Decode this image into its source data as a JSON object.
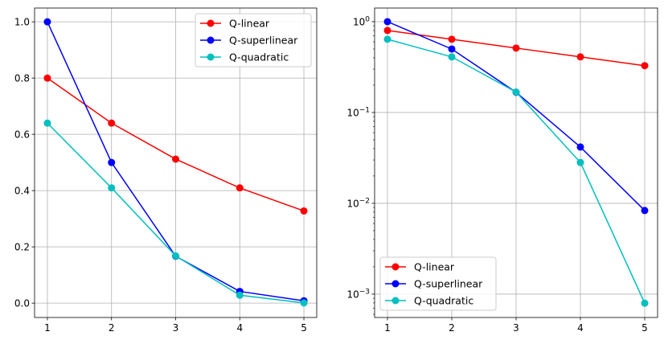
{
  "chart_data": [
    {
      "type": "line",
      "title": "",
      "xlabel": "",
      "ylabel": "",
      "yscale": "linear",
      "x": [
        1,
        2,
        3,
        4,
        5
      ],
      "xlim": [
        0.8,
        5.2
      ],
      "ylim": [
        -0.051,
        1.049
      ],
      "xticks": [
        "1",
        "2",
        "3",
        "4",
        "5"
      ],
      "yticks": [
        "0.0",
        "0.2",
        "0.4",
        "0.6",
        "0.8",
        "1.0"
      ],
      "grid": true,
      "legend_position": "upper-right",
      "series": [
        {
          "name": "Q-linear",
          "color": "#ff0000",
          "values": [
            0.8,
            0.64,
            0.512,
            0.4096,
            0.32768
          ]
        },
        {
          "name": "Q-superlinear",
          "color": "#0000ff",
          "values": [
            1.0,
            0.5,
            0.1667,
            0.04167,
            0.00833
          ]
        },
        {
          "name": "Q-quadratic",
          "color": "#00bfbf",
          "values": [
            0.64,
            0.4096,
            0.1678,
            0.02815,
            0.000795
          ]
        }
      ]
    },
    {
      "type": "line",
      "title": "",
      "xlabel": "",
      "ylabel": "",
      "yscale": "log",
      "x": [
        1,
        2,
        3,
        4,
        5
      ],
      "xlim": [
        0.8,
        5.2
      ],
      "ylim": [
        0.000553,
        1.413
      ],
      "xticks": [
        "1",
        "2",
        "3",
        "4",
        "5"
      ],
      "yticks": [
        {
          "value": 1,
          "base": "10",
          "exp": "0"
        },
        {
          "value": 0.1,
          "base": "10",
          "exp": "−1"
        },
        {
          "value": 0.01,
          "base": "10",
          "exp": "−2"
        },
        {
          "value": 0.001,
          "base": "10",
          "exp": "−3"
        }
      ],
      "grid": true,
      "legend_position": "lower-left",
      "series": [
        {
          "name": "Q-linear",
          "color": "#ff0000",
          "values": [
            0.8,
            0.64,
            0.512,
            0.4096,
            0.32768
          ]
        },
        {
          "name": "Q-superlinear",
          "color": "#0000ff",
          "values": [
            1.0,
            0.5,
            0.1667,
            0.04167,
            0.00833
          ]
        },
        {
          "name": "Q-quadratic",
          "color": "#00bfbf",
          "values": [
            0.64,
            0.4096,
            0.1678,
            0.02815,
            0.000795
          ]
        }
      ]
    }
  ]
}
